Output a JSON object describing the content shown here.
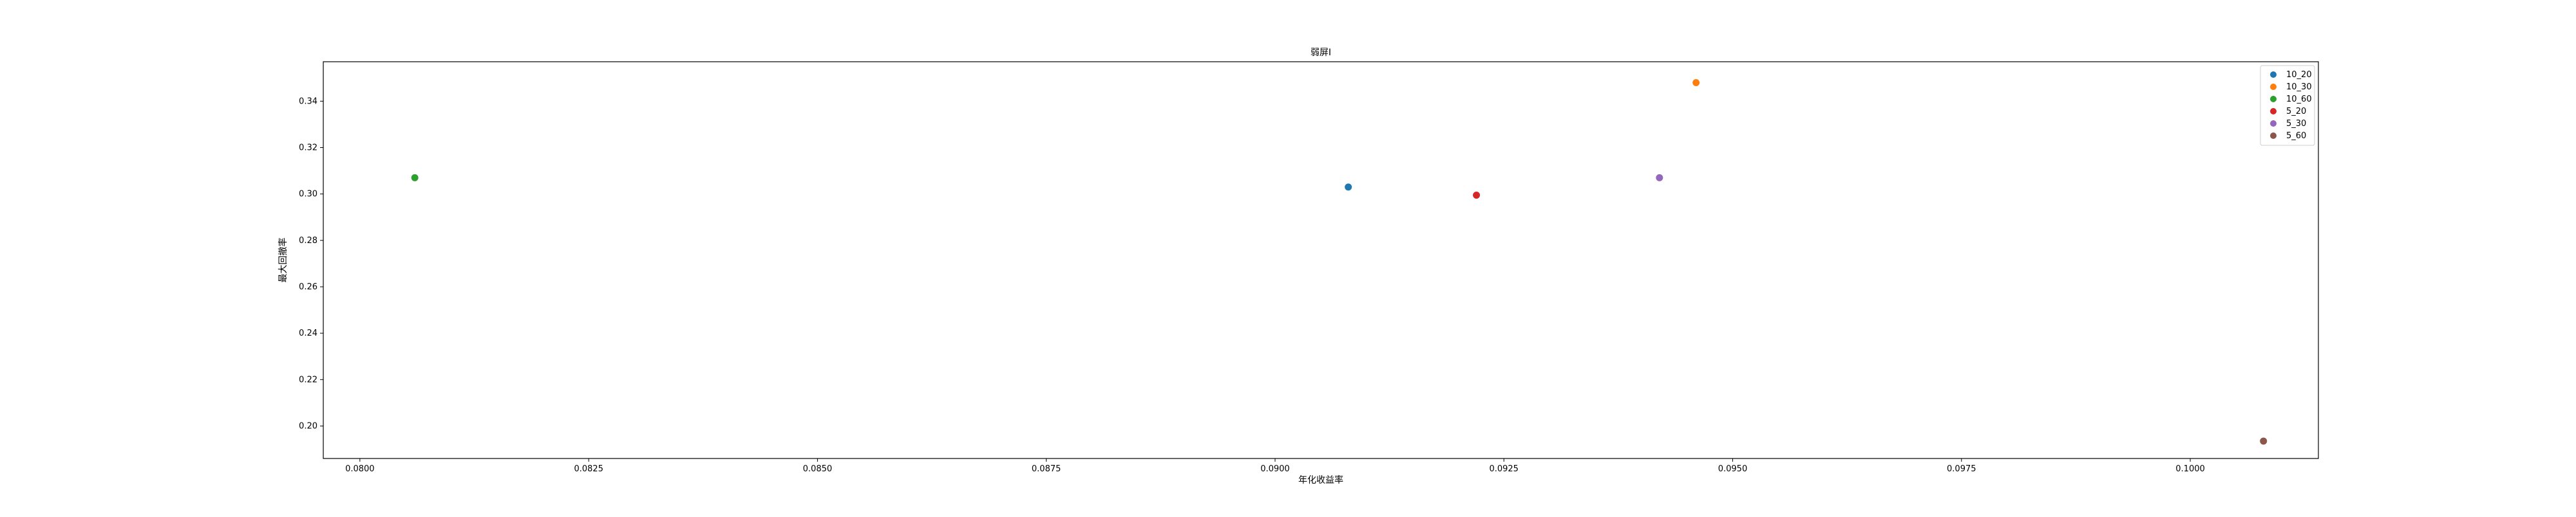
{
  "chart_data": {
    "type": "scatter",
    "title": "弱屏I",
    "xlabel": "年化收益率",
    "ylabel": "最大回撤率",
    "xlim": [
      0.0796,
      0.1014
    ],
    "ylim": [
      0.186,
      0.357
    ],
    "x_ticks": [
      {
        "value": 0.08,
        "label": "0.0800"
      },
      {
        "value": 0.0825,
        "label": "0.0825"
      },
      {
        "value": 0.085,
        "label": "0.0850"
      },
      {
        "value": 0.0875,
        "label": "0.0875"
      },
      {
        "value": 0.09,
        "label": "0.0900"
      },
      {
        "value": 0.0925,
        "label": "0.0925"
      },
      {
        "value": 0.095,
        "label": "0.0950"
      },
      {
        "value": 0.0975,
        "label": "0.0975"
      },
      {
        "value": 0.1,
        "label": "0.1000"
      }
    ],
    "y_ticks": [
      {
        "value": 0.2,
        "label": "0.20"
      },
      {
        "value": 0.22,
        "label": "0.22"
      },
      {
        "value": 0.24,
        "label": "0.24"
      },
      {
        "value": 0.26,
        "label": "0.26"
      },
      {
        "value": 0.28,
        "label": "0.28"
      },
      {
        "value": 0.3,
        "label": "0.30"
      },
      {
        "value": 0.32,
        "label": "0.32"
      },
      {
        "value": 0.34,
        "label": "0.34"
      }
    ],
    "grid": false,
    "legend_position": "top-right",
    "series": [
      {
        "name": "10_20",
        "color": "#1f77b4",
        "x": [
          0.0908
        ],
        "y": [
          0.303
        ]
      },
      {
        "name": "10_30",
        "color": "#ff7f0e",
        "x": [
          0.0946
        ],
        "y": [
          0.348
        ]
      },
      {
        "name": "10_60",
        "color": "#2ca02c",
        "x": [
          0.0806
        ],
        "y": [
          0.307
        ]
      },
      {
        "name": "5_20",
        "color": "#d62728",
        "x": [
          0.0922
        ],
        "y": [
          0.2995
        ]
      },
      {
        "name": "5_30",
        "color": "#9467bd",
        "x": [
          0.0942
        ],
        "y": [
          0.307
        ]
      },
      {
        "name": "5_60",
        "color": "#8c564b",
        "x": [
          0.1008
        ],
        "y": [
          0.1935
        ]
      }
    ]
  }
}
